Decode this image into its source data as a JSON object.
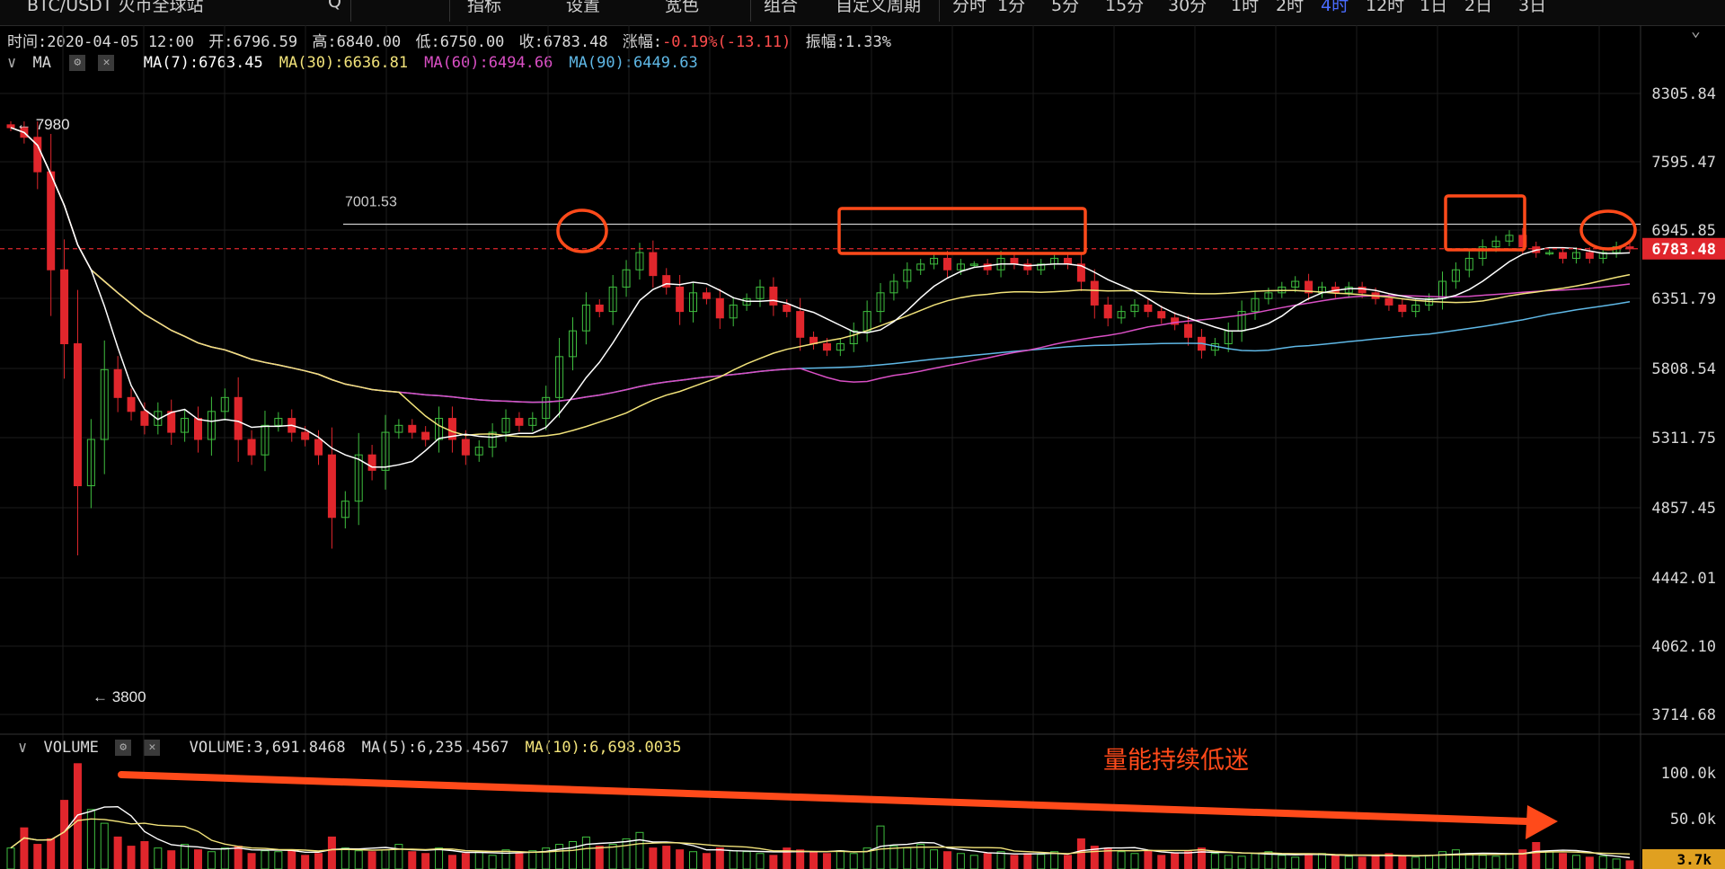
{
  "topbar": {
    "items": [
      {
        "label": "BTC/USDT 火币全球站",
        "icon": "chart-icon"
      },
      {
        "label": "Q",
        "icon": "search-icon"
      },
      {
        "label": "指标",
        "icon": "indicator-icon"
      },
      {
        "label": "设置",
        "icon": "gear-icon"
      },
      {
        "label": "宽色",
        "icon": "theme-icon"
      },
      {
        "label": "组合",
        "icon": "layout-icon"
      },
      {
        "label": "自定义周期"
      },
      {
        "label": "分时"
      },
      {
        "label": "1分"
      },
      {
        "label": "5分"
      },
      {
        "label": "15分"
      },
      {
        "label": "30分"
      },
      {
        "label": "1时"
      },
      {
        "label": "2时"
      },
      {
        "label": "4时",
        "active": true
      },
      {
        "label": "12时"
      },
      {
        "label": "1日"
      },
      {
        "label": "2日"
      },
      {
        "label": "3日"
      }
    ]
  },
  "ohlc": {
    "time": "时间:2020-04-05 12:00",
    "open": "开:6796.59",
    "high": "高:6840.00",
    "low": "低:6750.00",
    "close": "收:6783.48",
    "change_label": "涨幅:",
    "change_value": "-0.19%(-13.11)",
    "amplitude": "振幅:1.33%"
  },
  "ma_legend": {
    "title": "MA",
    "items": [
      {
        "text": "MA(7):6763.45",
        "color": "#ffffff"
      },
      {
        "text": "MA(30):6636.81",
        "color": "#f2e37a"
      },
      {
        "text": "MA(60):6494.66",
        "color": "#d94fc4"
      },
      {
        "text": "MA(90):6449.63",
        "color": "#5fb8e6"
      }
    ]
  },
  "volume_legend": {
    "title": "VOLUME",
    "items": [
      {
        "text": "VOLUME:3,691.8468",
        "color": "#d9d9d9"
      },
      {
        "text": "MA(5):6,235.4567",
        "color": "#d9d9d9"
      },
      {
        "text": "MA(10):6,698.0035",
        "color": "#f2e37a"
      }
    ]
  },
  "colors": {
    "up": "#3fbf3f",
    "down": "#e0262c",
    "accent_box": "#ff4a1a",
    "ma7": "#ffffff",
    "ma30": "#f2e37a",
    "ma60": "#d94fc4",
    "ma90": "#5fb8e6"
  },
  "chart_data": {
    "type": "candlestick",
    "y_ticks": [
      "8305.84",
      "7595.47",
      "6945.85",
      "6351.79",
      "5808.54",
      "5311.75",
      "4857.45",
      "4442.01",
      "4062.10",
      "3714.68"
    ],
    "current_price_label": "6783.48",
    "current_price": 6783.48,
    "resistance_label": "7001.53",
    "resistance": 7001.53,
    "high_marker": "← 7980",
    "low_marker": "← 3800",
    "annotation": "量能持续低迷",
    "volume_ticks": [
      "100.0k",
      "50.0k"
    ],
    "volume_current": "3.7k",
    "close_series": [
      7950,
      7850,
      7500,
      6600,
      6000,
      5000,
      5300,
      5800,
      5600,
      5500,
      5400,
      5500,
      5350,
      5450,
      5300,
      5500,
      5600,
      5300,
      5200,
      5400,
      5450,
      5350,
      5300,
      5200,
      4800,
      4900,
      5200,
      5100,
      5350,
      5400,
      5350,
      5300,
      5450,
      5300,
      5200,
      5250,
      5350,
      5450,
      5400,
      5450,
      5600,
      5900,
      6100,
      6300,
      6250,
      6450,
      6600,
      6750,
      6550,
      6450,
      6250,
      6400,
      6350,
      6200,
      6300,
      6350,
      6450,
      6300,
      6250,
      6050,
      6000,
      5950,
      6000,
      6100,
      6250,
      6400,
      6500,
      6600,
      6650,
      6700,
      6600,
      6650,
      6650,
      6600,
      6700,
      6650,
      6600,
      6650,
      6700,
      6650,
      6500,
      6300,
      6200,
      6250,
      6300,
      6250,
      6200,
      6150,
      6050,
      5950,
      6000,
      6100,
      6250,
      6350,
      6400,
      6450,
      6500,
      6400,
      6450,
      6400,
      6450,
      6400,
      6350,
      6300,
      6250,
      6300,
      6350,
      6500,
      6600,
      6700,
      6800,
      6850,
      6900,
      6800,
      6750,
      6750,
      6700,
      6750,
      6700,
      6750,
      6800,
      6783
    ],
    "volume_series": [
      18,
      40,
      22,
      28,
      70,
      110,
      60,
      45,
      30,
      20,
      25,
      18,
      15,
      22,
      16,
      14,
      18,
      20,
      12,
      15,
      14,
      16,
      10,
      12,
      30,
      18,
      15,
      14,
      16,
      22,
      14,
      12,
      18,
      10,
      12,
      14,
      10,
      16,
      12,
      15,
      18,
      22,
      25,
      30,
      20,
      22,
      28,
      35,
      18,
      20,
      16,
      14,
      12,
      18,
      15,
      14,
      12,
      10,
      18,
      16,
      14,
      12,
      15,
      12,
      18,
      42,
      20,
      18,
      22,
      16,
      14,
      12,
      10,
      12,
      14,
      10,
      12,
      11,
      14,
      10,
      28,
      20,
      18,
      14,
      12,
      15,
      10,
      12,
      14,
      18,
      12,
      10,
      9,
      12,
      14,
      10,
      8,
      11,
      12,
      10,
      9,
      8,
      10,
      12,
      9,
      8,
      10,
      14,
      16,
      12,
      10,
      9,
      12,
      16,
      24,
      14,
      12,
      10,
      8,
      9,
      6,
      4
    ]
  }
}
